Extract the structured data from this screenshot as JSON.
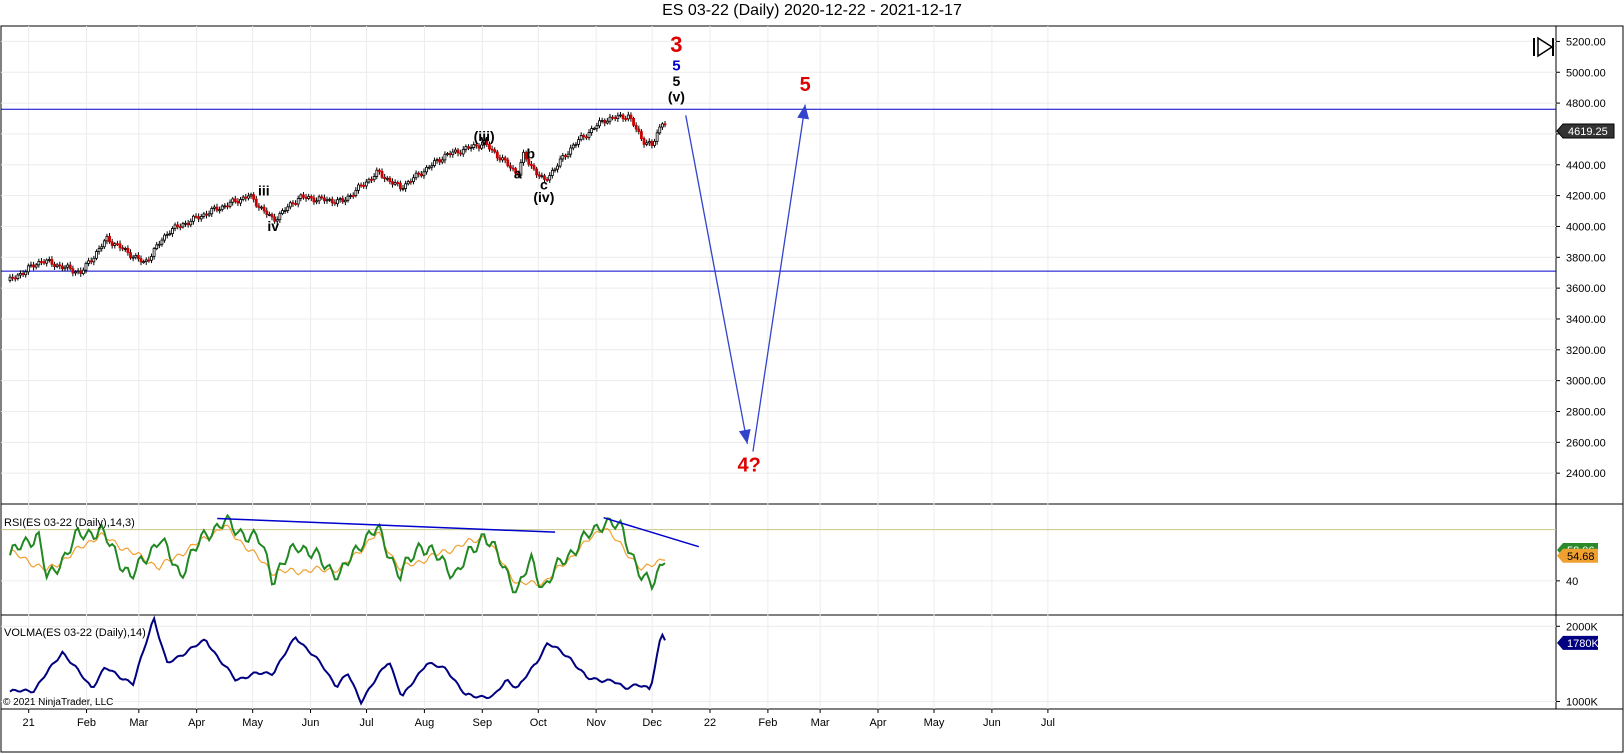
{
  "title": "ES 03-22 (Daily)  2020-12-22 - 2021-12-17",
  "copyright": "© 2021 NinjaTrader, LLC",
  "colors": {
    "frame": "#000000",
    "hline": "#0000cc",
    "arrow": "#3344cc",
    "bull": "#000000",
    "bear": "#cc0000",
    "rsi": "#228822",
    "rsi_avg": "#f0a030",
    "rsi_level": "#c8c88a",
    "volma": "#000080",
    "wave_red": "#dd0000",
    "wave_blue": "#0000cc"
  },
  "chart_data": [
    {
      "type": "line",
      "panel": "price",
      "title": "ES 03-22 (Daily)  2020-12-22 - 2021-12-17",
      "xlabel": "",
      "ylabel": "",
      "x_ticks": [
        "21",
        "Feb",
        "Mar",
        "Apr",
        "May",
        "Jun",
        "Jul",
        "Aug",
        "Sep",
        "Oct",
        "Nov",
        "Dec",
        "22",
        "Feb",
        "Mar",
        "Apr",
        "May",
        "Jun",
        "Jul"
      ],
      "ylim": [
        2200,
        5300
      ],
      "y_ticks": [
        "5200.00",
        "5000.00",
        "4800.00",
        "4600.00",
        "4400.00",
        "4200.00",
        "4000.00",
        "3800.00",
        "3600.00",
        "3400.00",
        "3200.00",
        "3000.00",
        "2800.00",
        "2600.00",
        "2400.00"
      ],
      "last_price": "4619.25",
      "horizontal_lines": [
        4760,
        3710
      ],
      "series": [
        {
          "x": [
            "2020-12-22",
            "2021-01-08",
            "2021-01-29",
            "2021-02-12",
            "2021-03-04",
            "2021-03-17",
            "2021-04-09",
            "2021-04-29",
            "2021-05-12",
            "2021-05-26",
            "2021-06-18",
            "2021-07-07",
            "2021-07-19",
            "2021-08-12",
            "2021-09-02",
            "2021-09-20",
            "2021-09-23",
            "2021-10-04",
            "2021-10-20",
            "2021-11-05",
            "2021-11-18",
            "2021-11-26",
            "2021-12-01",
            "2021-12-07",
            "2021-12-09"
          ],
          "values": [
            3650,
            3780,
            3700,
            3920,
            3760,
            3970,
            4100,
            4200,
            4040,
            4190,
            4160,
            4350,
            4250,
            4460,
            4540,
            4340,
            4460,
            4290,
            4530,
            4690,
            4720,
            4560,
            4520,
            4700,
            4640
          ]
        }
      ],
      "wave_labels": [
        {
          "text": "iii",
          "x": "2021-05-07",
          "y": 4200,
          "color": "#000000"
        },
        {
          "text": "iv",
          "x": "2021-05-12",
          "y": 3970,
          "color": "#000000"
        },
        {
          "text": "(iii)",
          "x": "2021-09-02",
          "y": 4555,
          "color": "#000000"
        },
        {
          "text": "v",
          "x": "2021-09-02",
          "y": 4530,
          "color": "#000000"
        },
        {
          "text": "a",
          "x": "2021-09-20",
          "y": 4310,
          "color": "#000000"
        },
        {
          "text": "b",
          "x": "2021-09-27",
          "y": 4440,
          "color": "#000000"
        },
        {
          "text": "c",
          "x": "2021-10-04",
          "y": 4240,
          "color": "#000000"
        },
        {
          "text": "(iv)",
          "x": "2021-10-04",
          "y": 4160,
          "color": "#000000"
        },
        {
          "text": "3",
          "x": "2021-12-14",
          "y": 5130,
          "color": "#dd0000"
        },
        {
          "text": "5",
          "x": "2021-12-14",
          "y": 5010,
          "color": "#0000cc"
        },
        {
          "text": "5",
          "x": "2021-12-14",
          "y": 4910,
          "color": "#000000"
        },
        {
          "text": "(v)",
          "x": "2021-12-14",
          "y": 4810,
          "color": "#000000"
        },
        {
          "text": "4?",
          "x": "2022-01-22",
          "y": 2410,
          "color": "#dd0000"
        },
        {
          "text": "5",
          "x": "2022-02-21",
          "y": 4880,
          "color": "#dd0000"
        }
      ],
      "projection_arrows": [
        {
          "from": {
            "x": "2021-12-19",
            "y": 4720
          },
          "to": {
            "x": "2022-01-21",
            "y": 2590
          }
        },
        {
          "from": {
            "x": "2022-01-24",
            "y": 2540
          },
          "to": {
            "x": "2022-02-21",
            "y": 4790
          }
        }
      ]
    },
    {
      "type": "line",
      "panel": "rsi",
      "title": "RSI(ES 03-22 (Daily),14,3)",
      "ylim": [
        20,
        85
      ],
      "y_ticks": [
        "40"
      ],
      "level": 70,
      "last_values": [
        "58.06",
        "54.68"
      ],
      "series": [
        {
          "name": "",
          "x": [
            "2020-12-22",
            "2021-01-06",
            "2021-01-11",
            "2021-01-27",
            "2021-02-08",
            "2021-02-25",
            "2021-03-12",
            "2021-03-23",
            "2021-04-06",
            "2021-04-16",
            "2021-05-06",
            "2021-05-12",
            "2021-05-25",
            "2021-06-17",
            "2021-06-28",
            "2021-07-07",
            "2021-07-19",
            "2021-07-30",
            "2021-08-18",
            "2021-09-02",
            "2021-09-20",
            "2021-09-27",
            "2021-10-04",
            "2021-10-14",
            "2021-11-05",
            "2021-11-15",
            "2021-11-26",
            "2021-12-01",
            "2021-12-09"
          ],
          "values": [
            55,
            68,
            40,
            66,
            70,
            42,
            65,
            44,
            68,
            74,
            62,
            41,
            62,
            43,
            63,
            70,
            43,
            62,
            44,
            68,
            34,
            52,
            36,
            52,
            75,
            70,
            40,
            38,
            58
          ]
        },
        {
          "name": "",
          "x": [
            "2020-12-22",
            "2021-01-11",
            "2021-02-08",
            "2021-03-12",
            "2021-04-16",
            "2021-05-12",
            "2021-06-17",
            "2021-07-07",
            "2021-07-19",
            "2021-09-02",
            "2021-09-20",
            "2021-10-04",
            "2021-11-05",
            "2021-11-26",
            "2021-12-09"
          ],
          "values": [
            57,
            46,
            67,
            48,
            72,
            45,
            47,
            68,
            47,
            66,
            38,
            39,
            72,
            46,
            55
          ]
        }
      ],
      "trendlines": [
        {
          "from": {
            "x": "2021-04-12",
            "y": 76.5
          },
          "to": {
            "x": "2021-10-10",
            "y": 68.5
          }
        },
        {
          "from": {
            "x": "2021-11-05",
            "y": 77
          },
          "to": {
            "x": "2021-12-26",
            "y": 60
          }
        }
      ]
    },
    {
      "type": "line",
      "panel": "volma",
      "title": "VOLMA(ES 03-22 (Daily),14)",
      "ylim": [
        900,
        2150
      ],
      "y_ticks": [
        "2000K",
        "1000K"
      ],
      "last_value": "1780K",
      "series": [
        {
          "name": "",
          "x": [
            "2020-12-22",
            "2021-01-04",
            "2021-01-19",
            "2021-02-04",
            "2021-02-11",
            "2021-02-26",
            "2021-03-09",
            "2021-03-16",
            "2021-03-29",
            "2021-04-06",
            "2021-04-13",
            "2021-04-22",
            "2021-05-03",
            "2021-05-12",
            "2021-05-24",
            "2021-06-07",
            "2021-06-15",
            "2021-06-21",
            "2021-06-28",
            "2021-07-13",
            "2021-07-20",
            "2021-08-02",
            "2021-08-13",
            "2021-08-23",
            "2021-09-07",
            "2021-09-14",
            "2021-09-20",
            "2021-09-30",
            "2021-10-06",
            "2021-10-18",
            "2021-10-27",
            "2021-11-10",
            "2021-11-16",
            "2021-11-23",
            "2021-11-30",
            "2021-12-06",
            "2021-12-09"
          ],
          "values": [
            1130,
            1150,
            1660,
            1180,
            1450,
            1230,
            2120,
            1500,
            1700,
            1820,
            1560,
            1290,
            1370,
            1380,
            1860,
            1490,
            1200,
            1370,
            1000,
            1550,
            1050,
            1510,
            1430,
            1080,
            1060,
            1290,
            1180,
            1520,
            1780,
            1580,
            1310,
            1270,
            1180,
            1230,
            1150,
            1920,
            1790
          ]
        }
      ]
    }
  ]
}
